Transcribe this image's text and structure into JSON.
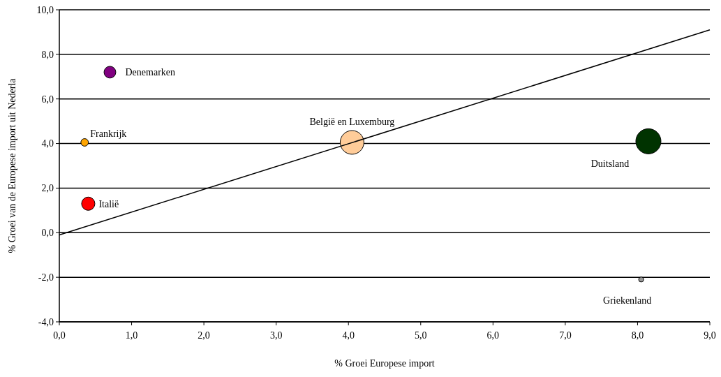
{
  "chart_data": {
    "type": "bubble",
    "xlabel": "% Groei Europese import",
    "ylabel": "% Groei van de Europese import uit Nederla",
    "xlim": [
      0,
      9
    ],
    "xticks": [
      {
        "value": 0,
        "label": "0,0"
      },
      {
        "value": 1,
        "label": "1,0"
      },
      {
        "value": 2,
        "label": "2,0"
      },
      {
        "value": 3,
        "label": "3,0"
      },
      {
        "value": 4,
        "label": "4,0"
      },
      {
        "value": 5,
        "label": "5,0"
      },
      {
        "value": 6,
        "label": "6,0"
      },
      {
        "value": 7,
        "label": "7,0"
      },
      {
        "value": 8,
        "label": "8,0"
      },
      {
        "value": 9,
        "label": "9,0"
      }
    ],
    "ylim": [
      -4,
      10
    ],
    "yticks": [
      {
        "value": -4,
        "label": "-4,0"
      },
      {
        "value": -2,
        "label": "-2,0"
      },
      {
        "value": 0,
        "label": "0,0"
      },
      {
        "value": 2,
        "label": "2,0"
      },
      {
        "value": 4,
        "label": "4,0"
      },
      {
        "value": 6,
        "label": "6,0"
      },
      {
        "value": 8,
        "label": "8,0"
      },
      {
        "value": 10,
        "label": "10,0"
      }
    ],
    "grid": "y",
    "series": [
      {
        "name": "Denemarken",
        "color": "#800080",
        "x": [
          0.7
        ],
        "values": [
          7.2
        ],
        "sizes": [
          0.22
        ]
      },
      {
        "name": "Frankrijk",
        "color": "#ffa500",
        "x": [
          0.35
        ],
        "values": [
          4.05
        ],
        "sizes": [
          0.09
        ]
      },
      {
        "name": "Italië",
        "color": "#ff0000",
        "x": [
          0.4
        ],
        "values": [
          1.3
        ],
        "sizes": [
          0.28
        ]
      },
      {
        "name": "België en Luxemburg",
        "color": "#ffcc99",
        "x": [
          4.05
        ],
        "values": [
          4.05
        ],
        "sizes": [
          0.89
        ]
      },
      {
        "name": "Duitsland",
        "color": "#003300",
        "x": [
          8.15
        ],
        "values": [
          4.1
        ],
        "sizes": [
          1
        ]
      },
      {
        "name": "Griekenland",
        "color": "#999999",
        "x": [
          8.05
        ],
        "values": [
          -2.1
        ],
        "sizes": [
          0.04
        ]
      },
      {
        "type": "line",
        "color": "#000000",
        "x": [
          0,
          9
        ],
        "values": [
          -0.1,
          9.1
        ]
      }
    ]
  }
}
